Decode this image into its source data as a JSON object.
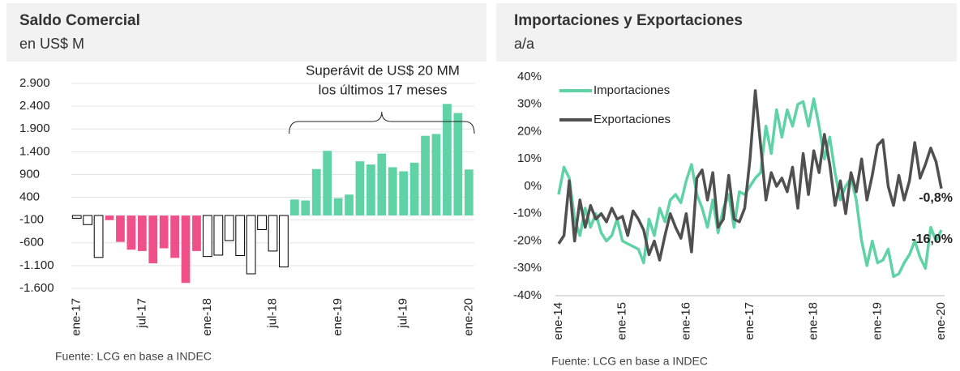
{
  "chart_data": [
    {
      "type": "bar",
      "title": "Saldo Comercial",
      "subtitle": "en US$ M",
      "annotation": [
        "Superávit de US$ 20 MM",
        "los últimos 17 meses"
      ],
      "source": "Fuente: LCG en base a INDEC",
      "categories": [
        "ene-17",
        null,
        null,
        null,
        null,
        null,
        "jul-17",
        null,
        null,
        null,
        null,
        null,
        "ene-18",
        null,
        null,
        null,
        null,
        null,
        "jul-18",
        null,
        null,
        null,
        null,
        null,
        "ene-19",
        null,
        null,
        null,
        null,
        null,
        "jul-19",
        null,
        null,
        null,
        null,
        null,
        "ene-20"
      ],
      "values": [
        -60,
        -200,
        -920,
        -100,
        -580,
        -750,
        -780,
        -1050,
        -720,
        -930,
        -1480,
        -780,
        -900,
        -870,
        -550,
        -880,
        -1280,
        -310,
        -780,
        -1130,
        350,
        330,
        1020,
        1420,
        380,
        460,
        1190,
        1120,
        1360,
        1060,
        970,
        1160,
        1750,
        1790,
        2450,
        2250,
        1010
      ],
      "colors": [
        "#ffffff",
        "#ffffff",
        "#ffffff",
        "#f0508a",
        "#f0508a",
        "#f0508a",
        "#f0508a",
        "#f0508a",
        "#f0508a",
        "#f0508a",
        "#f0508a",
        "#f0508a",
        "#ffffff",
        "#ffffff",
        "#ffffff",
        "#ffffff",
        "#ffffff",
        "#ffffff",
        "#ffffff",
        "#ffffff",
        "#5fd3a6",
        "#5fd3a6",
        "#5fd3a6",
        "#5fd3a6",
        "#5fd3a6",
        "#5fd3a6",
        "#5fd3a6",
        "#5fd3a6",
        "#5fd3a6",
        "#5fd3a6",
        "#5fd3a6",
        "#5fd3a6",
        "#5fd3a6",
        "#5fd3a6",
        "#5fd3a6",
        "#5fd3a6",
        "#5fd3a6"
      ],
      "ylim": [
        -1600,
        2900
      ],
      "yticks": [
        {
          "value": 2900,
          "label": "2.900"
        },
        {
          "value": 2400,
          "label": "2.400"
        },
        {
          "value": 1900,
          "label": "1.900"
        },
        {
          "value": 1400,
          "label": "1.400"
        },
        900,
        400,
        -100,
        -600,
        {
          "value": -1100,
          "label": "-1.100"
        },
        {
          "value": -1600,
          "label": "-1.600"
        }
      ],
      "grid": true
    },
    {
      "type": "line",
      "title": "Importaciones y Exportaciones",
      "subtitle": "a/a",
      "source": "Fuente: LCG en base a INDEC",
      "categories": [
        "ene-14",
        null,
        null,
        null,
        null,
        null,
        null,
        null,
        null,
        null,
        null,
        null,
        "ene-15",
        null,
        null,
        null,
        null,
        null,
        null,
        null,
        null,
        null,
        null,
        null,
        "ene-16",
        null,
        null,
        null,
        null,
        null,
        null,
        null,
        null,
        null,
        null,
        null,
        "ene-17",
        null,
        null,
        null,
        null,
        null,
        null,
        null,
        null,
        null,
        null,
        null,
        "ene-18",
        null,
        null,
        null,
        null,
        null,
        null,
        null,
        null,
        null,
        null,
        null,
        "ene-19",
        null,
        null,
        null,
        null,
        null,
        null,
        null,
        null,
        null,
        null,
        null,
        "ene-20"
      ],
      "series": [
        {
          "name": "Importaciones",
          "color": "#5fd3a6",
          "values": [
            -3,
            7,
            3,
            -12,
            -18,
            -8,
            -15,
            -10,
            -17,
            -20,
            -18,
            -12,
            -20,
            -21,
            -22,
            -23,
            -28,
            -12,
            -18,
            -8,
            -13,
            -5,
            -3,
            -6,
            2,
            8,
            -3,
            -8,
            -15,
            -5,
            -17,
            -8,
            -3,
            -15,
            -2,
            -3,
            0,
            3,
            5,
            22,
            12,
            28,
            18,
            28,
            22,
            30,
            31,
            22,
            32,
            22,
            10,
            18,
            5,
            -5,
            0,
            3,
            -5,
            -20,
            -29,
            -20,
            -28,
            -27,
            -23,
            -33,
            -32,
            -28,
            -25,
            -20,
            -26,
            -30,
            -15,
            -20,
            -16.0
          ],
          "value_labels": [
            null,
            null,
            null,
            null,
            null,
            null,
            null,
            null,
            null,
            null,
            null,
            null,
            null,
            null,
            null,
            null,
            null,
            null,
            null,
            null,
            null,
            null,
            null,
            null,
            null,
            null,
            null,
            null,
            null,
            null,
            null,
            null,
            null,
            null,
            null,
            null,
            null,
            null,
            null,
            null,
            null,
            null,
            null,
            null,
            null,
            null,
            null,
            null,
            null,
            null,
            null,
            null,
            null,
            null,
            null,
            null,
            null,
            null,
            null,
            null,
            null,
            null,
            null,
            null,
            null,
            null,
            null,
            null,
            null,
            null,
            null,
            null,
            "-16,0%"
          ]
        },
        {
          "name": "Exportaciones",
          "color": "#505050",
          "values": [
            -21,
            -18,
            2,
            -20,
            -5,
            -15,
            -7,
            -12,
            -10,
            -13,
            -8,
            -12,
            -11,
            -18,
            -9,
            -12,
            -16,
            -25,
            -20,
            -27,
            -18,
            -10,
            -15,
            -19,
            -10,
            -24,
            3,
            6,
            -5,
            5,
            -15,
            -12,
            4,
            -12,
            -13,
            -8,
            10,
            35,
            15,
            -5,
            5,
            0,
            3,
            -2,
            7,
            -8,
            12,
            -3,
            13,
            5,
            19,
            8,
            -7,
            2,
            -10,
            5,
            -2,
            10,
            -5,
            4,
            15,
            17,
            0,
            -7,
            4,
            -5,
            2,
            16,
            3,
            8,
            14,
            9,
            -0.8
          ],
          "value_labels": [
            null,
            null,
            null,
            null,
            null,
            null,
            null,
            null,
            null,
            null,
            null,
            null,
            null,
            null,
            null,
            null,
            null,
            null,
            null,
            null,
            null,
            null,
            null,
            null,
            null,
            null,
            null,
            null,
            null,
            null,
            null,
            null,
            null,
            null,
            null,
            null,
            null,
            null,
            null,
            null,
            null,
            null,
            null,
            null,
            null,
            null,
            null,
            null,
            null,
            null,
            null,
            null,
            null,
            null,
            null,
            null,
            null,
            null,
            null,
            null,
            null,
            null,
            null,
            null,
            null,
            null,
            null,
            null,
            null,
            null,
            null,
            null,
            "-0,8%"
          ]
        }
      ],
      "ylim": [
        -40,
        40
      ],
      "yticks": [
        {
          "value": 40,
          "label": "40%"
        },
        {
          "value": 30,
          "label": "30%"
        },
        {
          "value": 20,
          "label": "20%"
        },
        {
          "value": 10,
          "label": "10%"
        },
        {
          "value": 0,
          "label": "0%"
        },
        {
          "value": -10,
          "label": "-10%"
        },
        {
          "value": -20,
          "label": "-20%"
        },
        {
          "value": -30,
          "label": "-30%"
        },
        {
          "value": -40,
          "label": "-40%"
        }
      ],
      "grid": false,
      "legend": "upper-left"
    }
  ]
}
